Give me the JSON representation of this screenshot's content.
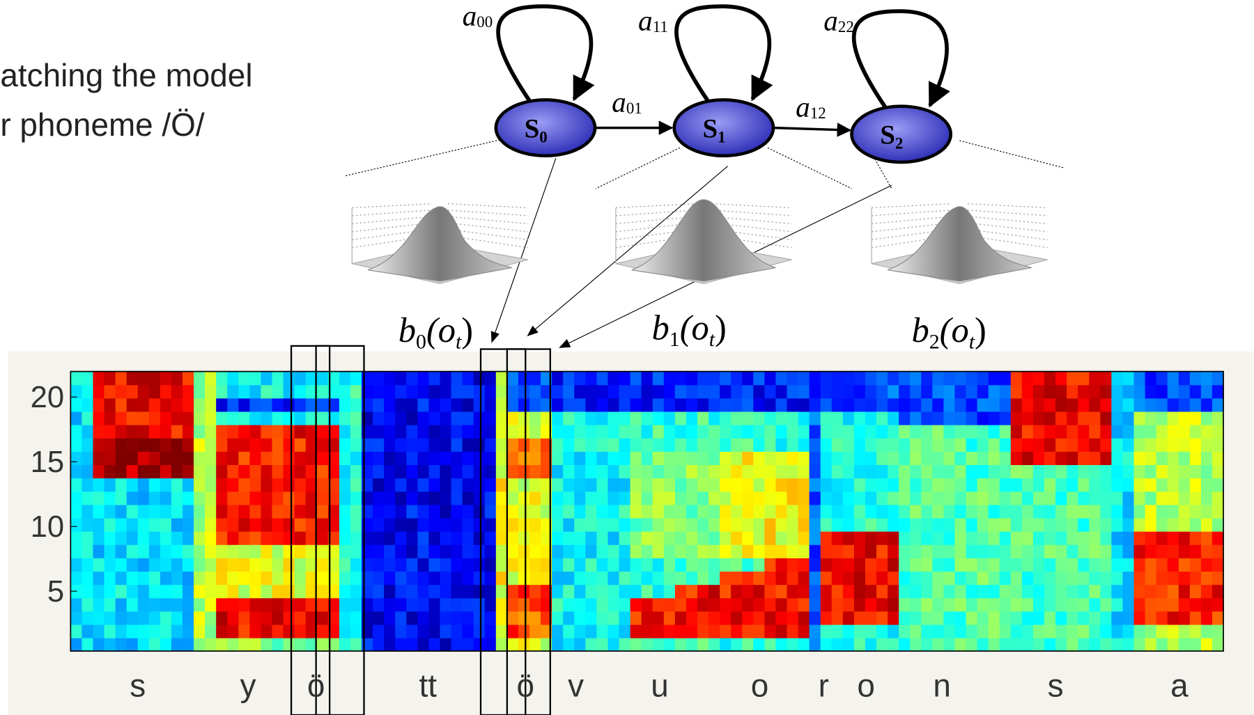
{
  "caption": {
    "line1": "atching the model",
    "line2": "r phoneme /Ö/"
  },
  "states": [
    {
      "letter": "S",
      "sub": "0"
    },
    {
      "letter": "S",
      "sub": "1"
    },
    {
      "letter": "S",
      "sub": "2"
    }
  ],
  "transitions": [
    {
      "letter": "a",
      "sub": "00"
    },
    {
      "letter": "a",
      "sub": "11"
    },
    {
      "letter": "a",
      "sub": "22"
    },
    {
      "letter": "a",
      "sub": "01"
    },
    {
      "letter": "a",
      "sub": "12"
    }
  ],
  "emissions": [
    {
      "f": "b",
      "sub": "0",
      "open": "(o",
      "argsub": "t",
      "close": ")"
    },
    {
      "f": "b",
      "sub": "1",
      "open": "(o",
      "argsub": "t",
      "close": ")"
    },
    {
      "f": "b",
      "sub": "2",
      "open": "(o",
      "argsub": "t",
      "close": ")"
    }
  ],
  "spectrogram": {
    "yticks": [
      20,
      15,
      10,
      5
    ],
    "phonemes": [
      "s",
      "y",
      "ö",
      "tt",
      "ö",
      "v",
      "u",
      "o",
      "r",
      "o",
      "n",
      "s",
      "a"
    ]
  }
}
